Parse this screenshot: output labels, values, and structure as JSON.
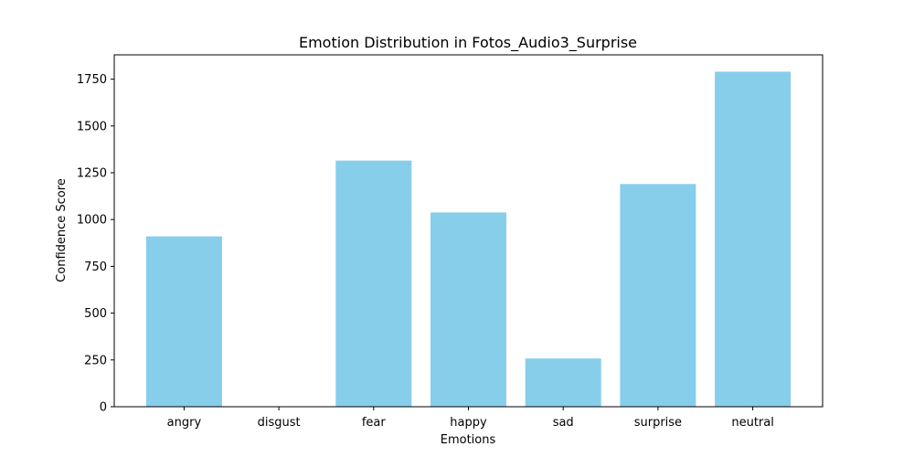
{
  "chart_data": {
    "type": "bar",
    "title": "Emotion Distribution in Fotos_Audio3_Surprise",
    "xlabel": "Emotions",
    "ylabel": "Confidence Score",
    "categories": [
      "angry",
      "disgust",
      "fear",
      "happy",
      "sad",
      "surprise",
      "neutral"
    ],
    "values": [
      910,
      0,
      1315,
      1038,
      258,
      1190,
      1790
    ],
    "ylim": [
      0,
      1880
    ],
    "yticks": [
      0,
      250,
      500,
      750,
      1000,
      1250,
      1500,
      1750
    ],
    "ytick_labels": [
      "0",
      "250",
      "500",
      "750",
      "1000",
      "1250",
      "1500",
      "1750"
    ],
    "bar_color": "#87CEEB",
    "grid": false,
    "legend": "none"
  }
}
